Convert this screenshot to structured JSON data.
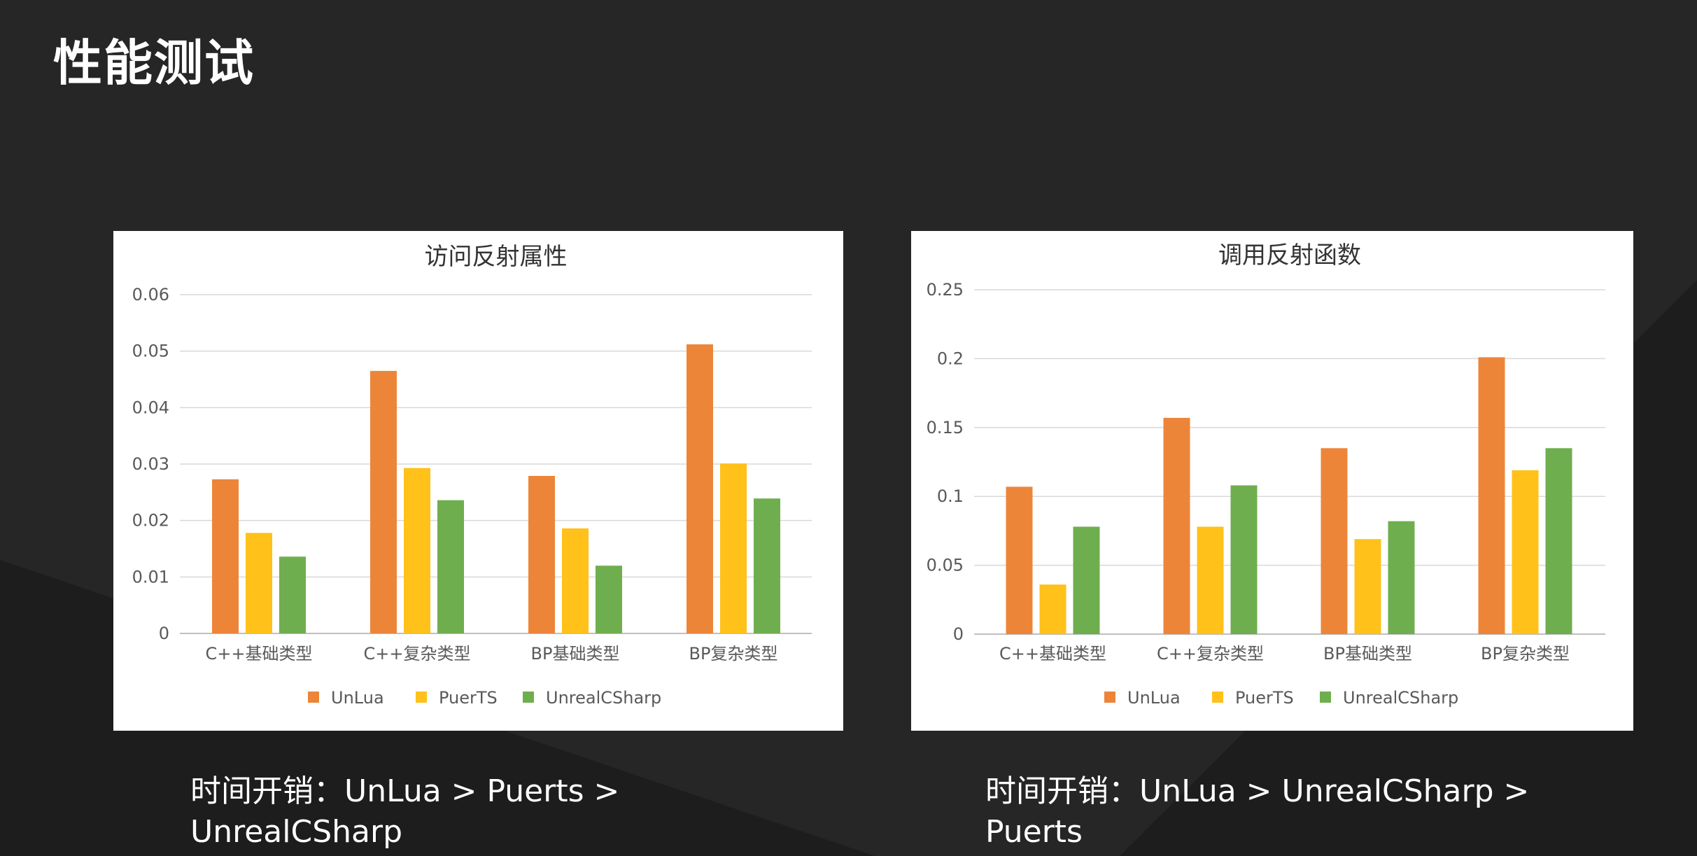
{
  "page": {
    "title": "性能测试",
    "background_color": "#262626"
  },
  "series_colors": {
    "UnLua": "#ED8539",
    "PuerTS": "#FFC11A",
    "UnrealCSharp": "#6FAE4E"
  },
  "chart_data": [
    {
      "type": "bar",
      "title": "访问反射属性",
      "categories": [
        "C++基础类型",
        "C++复杂类型",
        "BP基础类型",
        "BP复杂类型"
      ],
      "series": [
        {
          "name": "UnLua",
          "values": [
            0.0273,
            0.0465,
            0.0279,
            0.0512
          ]
        },
        {
          "name": "PuerTS",
          "values": [
            0.0178,
            0.0293,
            0.0186,
            0.0301
          ]
        },
        {
          "name": "UnrealCSharp",
          "values": [
            0.0136,
            0.0236,
            0.012,
            0.0239
          ]
        }
      ],
      "ylim": [
        0,
        0.06
      ],
      "yticks": [
        "0",
        "0.01",
        "0.02",
        "0.03",
        "0.04",
        "0.05",
        "0.06"
      ],
      "xlabel": "",
      "ylabel": "",
      "grid": true,
      "legend_position": "bottom"
    },
    {
      "type": "bar",
      "title": "调用反射函数",
      "categories": [
        "C++基础类型",
        "C++复杂类型",
        "BP基础类型",
        "BP复杂类型"
      ],
      "series": [
        {
          "name": "UnLua",
          "values": [
            0.107,
            0.157,
            0.135,
            0.201
          ]
        },
        {
          "name": "PuerTS",
          "values": [
            0.036,
            0.078,
            0.069,
            0.119
          ]
        },
        {
          "name": "UnrealCSharp",
          "values": [
            0.078,
            0.108,
            0.082,
            0.135
          ]
        }
      ],
      "ylim": [
        0,
        0.25
      ],
      "yticks": [
        "0",
        "0.05",
        "0.1",
        "0.15",
        "0.2",
        "0.25"
      ],
      "xlabel": "",
      "ylabel": "",
      "grid": true,
      "legend_position": "bottom"
    }
  ],
  "captions": [
    "时间开销：UnLua > Puerts > UnrealCSharp",
    "时间开销：UnLua > UnrealCSharp > Puerts"
  ]
}
